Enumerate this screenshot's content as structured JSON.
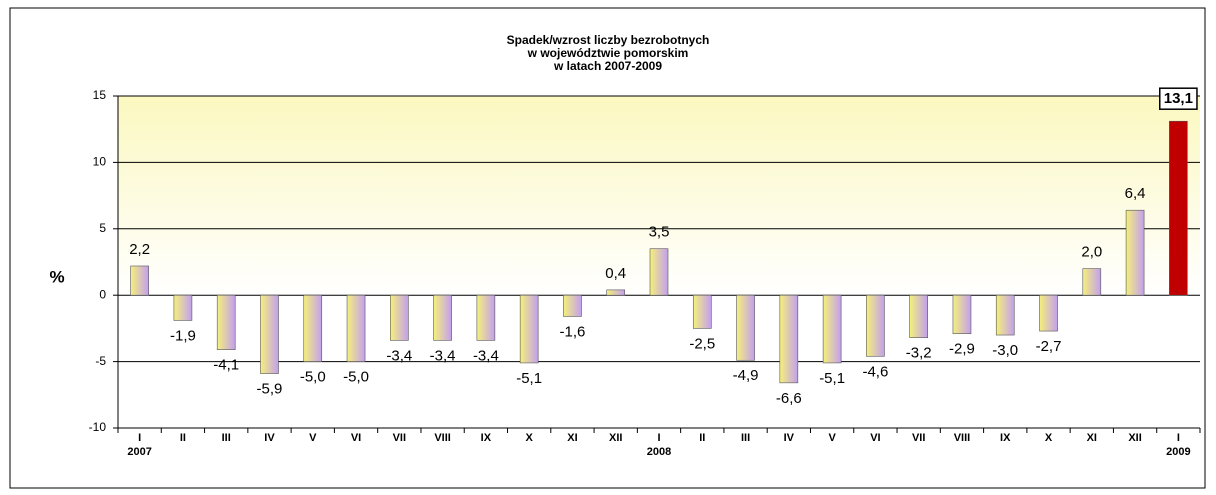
{
  "chart_data": {
    "type": "bar",
    "title": [
      "Spadek/wzrost liczby bezrobotnych",
      "w województwie pomorskim",
      "w latach 2007-2009"
    ],
    "y_label": "%",
    "categories": [
      "I",
      "II",
      "III",
      "IV",
      "V",
      "VI",
      "VII",
      "VIII",
      "IX",
      "X",
      "XI",
      "XII",
      "I",
      "II",
      "III",
      "IV",
      "V",
      "VI",
      "VII",
      "VIII",
      "IX",
      "X",
      "XI",
      "XII",
      "I"
    ],
    "category_groups": [
      "2007",
      null,
      null,
      null,
      null,
      null,
      null,
      null,
      null,
      null,
      null,
      null,
      "2008",
      null,
      null,
      null,
      null,
      null,
      null,
      null,
      null,
      null,
      null,
      null,
      "2009"
    ],
    "values": [
      2.2,
      -1.9,
      -4.1,
      -5.9,
      -5.0,
      -5.0,
      -3.4,
      -3.4,
      -3.4,
      -5.1,
      -1.6,
      0.4,
      3.5,
      -2.5,
      -4.9,
      -6.6,
      -5.1,
      -4.6,
      -3.2,
      -2.9,
      -3.0,
      -2.7,
      2.0,
      6.4,
      13.1
    ],
    "value_labels": [
      "2,2",
      "-1,9",
      "-4,1",
      "-5,9",
      "-5,0",
      "-5,0",
      "-3,4",
      "-3,4",
      "-3,4",
      "-5,1",
      "-1,6",
      "0,4",
      "3,5",
      "-2,5",
      "-4,9",
      "-6,6",
      "-5,1",
      "-4,6",
      "-3,2",
      "-2,9",
      "-3,0",
      "-2,7",
      "2,0",
      "6,4",
      "13,1"
    ],
    "value_label_style": [
      "normal",
      "normal",
      "normal",
      "normal",
      "normal",
      "normal",
      "normal",
      "normal",
      "normal",
      "normal",
      "normal",
      "normal",
      "normal",
      "normal",
      "normal",
      "normal",
      "normal",
      "normal",
      "normal",
      "normal",
      "normal",
      "normal",
      "normal",
      "normal",
      "boxed"
    ],
    "colors": [
      [
        "#f5f07a",
        "#c39ff0"
      ],
      [
        "#f5f07a",
        "#c39ff0"
      ],
      [
        "#f5f07a",
        "#c39ff0"
      ],
      [
        "#f5f07a",
        "#c39ff0"
      ],
      [
        "#f5f07a",
        "#c39ff0"
      ],
      [
        "#f5f07a",
        "#c39ff0"
      ],
      [
        "#f5f07a",
        "#c39ff0"
      ],
      [
        "#f5f07a",
        "#c39ff0"
      ],
      [
        "#f5f07a",
        "#c39ff0"
      ],
      [
        "#f5f07a",
        "#c39ff0"
      ],
      [
        "#f5f07a",
        "#c39ff0"
      ],
      [
        "#f5f07a",
        "#c39ff0"
      ],
      [
        "#f5f07a",
        "#c39ff0"
      ],
      [
        "#f5f07a",
        "#c39ff0"
      ],
      [
        "#f5f07a",
        "#c39ff0"
      ],
      [
        "#f5f07a",
        "#c39ff0"
      ],
      [
        "#f5f07a",
        "#c39ff0"
      ],
      [
        "#f5f07a",
        "#c39ff0"
      ],
      [
        "#f5f07a",
        "#c39ff0"
      ],
      [
        "#f5f07a",
        "#c39ff0"
      ],
      [
        "#f5f07a",
        "#c39ff0"
      ],
      [
        "#f5f07a",
        "#c39ff0"
      ],
      [
        "#f5f07a",
        "#c39ff0"
      ],
      [
        "#f5f07a",
        "#c39ff0"
      ],
      [
        "#c00000",
        "#c00000"
      ]
    ],
    "ylim": [
      -10,
      15
    ],
    "yticks": [
      -10,
      -5,
      0,
      5,
      10,
      15
    ],
    "grid": true
  }
}
